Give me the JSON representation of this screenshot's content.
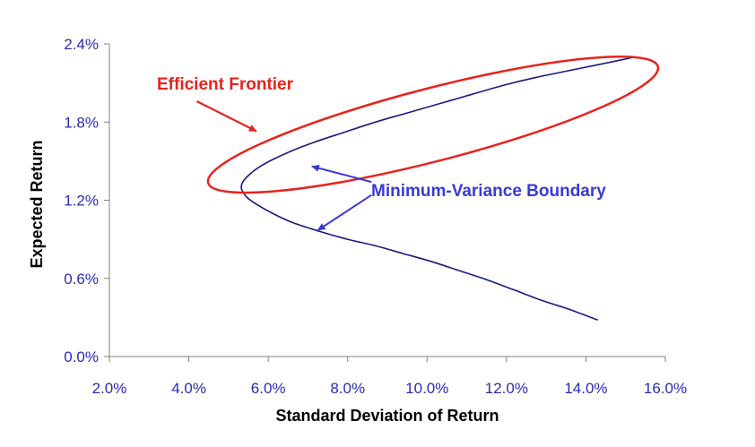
{
  "chart_data": {
    "type": "line",
    "title": "",
    "xlabel": "Standard Deviation of Return",
    "ylabel": "Expected Return",
    "xlim": [
      0.02,
      0.16
    ],
    "ylim": [
      0.0,
      0.024
    ],
    "x_ticks": [
      0.02,
      0.04,
      0.06,
      0.08,
      0.1,
      0.12,
      0.14,
      0.16
    ],
    "x_tick_labels": [
      "2.0%",
      "4.0%",
      "6.0%",
      "8.0%",
      "10.0%",
      "12.0%",
      "14.0%",
      "16.0%"
    ],
    "y_ticks": [
      0.0,
      0.006,
      0.012,
      0.018,
      0.024
    ],
    "y_tick_labels": [
      "0.0%",
      "0.6%",
      "1.2%",
      "1.8%",
      "2.4%"
    ],
    "grid": false,
    "legend": "none",
    "series": [
      {
        "color": "#1a1a80",
        "x": [
          0.143,
          0.136,
          0.129,
          0.122,
          0.115,
          0.108,
          0.101,
          0.094,
          0.087,
          0.08,
          0.073,
          0.066,
          0.061,
          0.057,
          0.0547,
          0.0535,
          0.0532,
          0.0536,
          0.055,
          0.0575,
          0.061,
          0.066,
          0.072,
          0.079,
          0.087,
          0.095,
          0.103,
          0.111,
          0.119,
          0.127,
          0.135,
          0.143,
          0.1525
        ],
        "y": [
          0.0028,
          0.0036,
          0.0043,
          0.0051,
          0.0059,
          0.0066,
          0.0073,
          0.0079,
          0.0085,
          0.009,
          0.0096,
          0.0103,
          0.011,
          0.0117,
          0.0122,
          0.0127,
          0.013,
          0.0134,
          0.0139,
          0.0145,
          0.0151,
          0.0158,
          0.0165,
          0.0172,
          0.018,
          0.0187,
          0.0194,
          0.0201,
          0.0208,
          0.0214,
          0.0219,
          0.0224,
          0.023
        ]
      }
    ],
    "annotations": [
      {
        "text": "Efficient Frontier",
        "color": "#e8231c",
        "highlight": "ellipse",
        "ellipse": {
          "cx": 0.1015,
          "cy": 0.0178,
          "rx_sd": 0.0585,
          "ry_sd": 0.0028,
          "angle_deg": -14.5
        },
        "arrow_from": [
          0.042,
          0.0196
        ],
        "arrow_to": [
          0.057,
          0.0173
        ]
      },
      {
        "text": "Minimum-Variance Boundary",
        "color": "#3a3ad6",
        "arrows": [
          {
            "from": [
              0.086,
              0.0134
            ],
            "to": [
              0.071,
              0.0146
            ]
          },
          {
            "from": [
              0.086,
              0.0124
            ],
            "to": [
              0.0725,
              0.0097
            ]
          }
        ]
      }
    ]
  }
}
